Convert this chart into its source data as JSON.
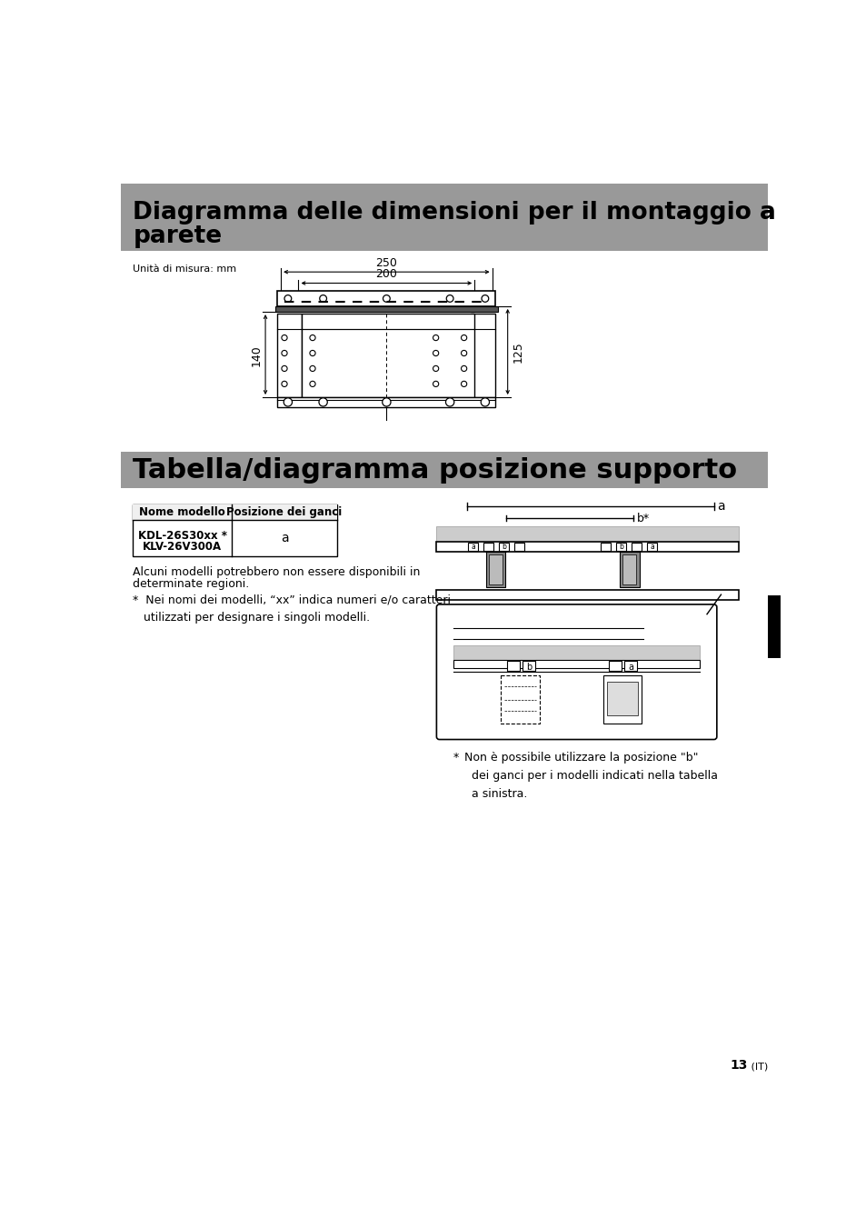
{
  "title1_line1": "Diagramma delle dimensioni per il montaggio a",
  "title1_line2": "parete",
  "title2": "Tabella/diagramma posizione supporto",
  "header_bg": "#999999",
  "header_text_color": "#000000",
  "page_bg": "#ffffff",
  "unit_label": "Unità di misura: mm",
  "dim_250": "250",
  "dim_200": "200",
  "dim_140": "140",
  "dim_125": "125",
  "table_header1": "Nome modello",
  "table_header2": "Posizione dei ganci",
  "table_row1_col1_line1": "KDL-26S30xx *",
  "table_row1_col1_line2": "KLV-26V300A",
  "table_row1_col2": "a",
  "note1_line1": "Alcuni modelli potrebbero non essere disponibili in",
  "note1_line2": "determinate regioni.",
  "note2": "*  Nei nomi dei modelli, “xx” indica numeri e/o caratteri\n   utilizzati per designare i singoli modelli.",
  "diag_note_star": "*",
  "diag_note_text": " Non è possibile utilizzare la posizione “b”\n   dei ganci per i modelli indicati nella tabella\n   a sinistra.",
  "page_number": "13",
  "page_number_suffix": " (IT)"
}
